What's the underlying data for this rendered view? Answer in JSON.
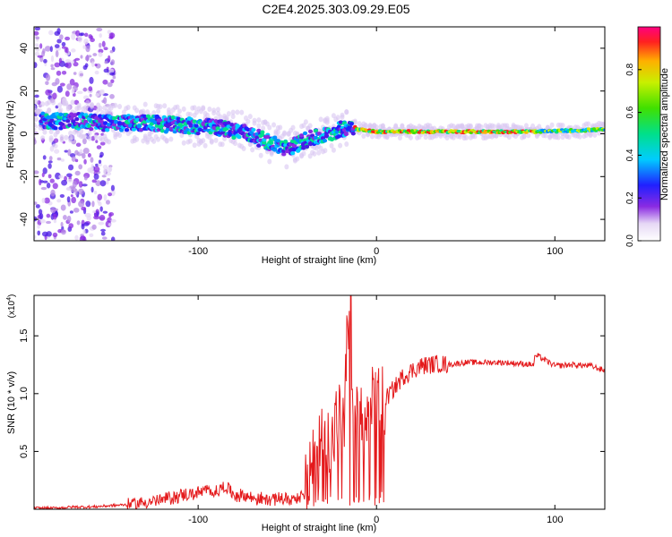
{
  "title": "C2E4.2025.303.09.29.E05",
  "chart_data": [
    {
      "type": "heatmap",
      "xlabel": "Height of straight line (km)",
      "ylabel": "Frequency (Hz)",
      "xlim": [
        -192,
        128
      ],
      "ylim": [
        -50,
        50
      ],
      "x_ticks": [
        -100,
        0,
        100
      ],
      "y_ticks": [
        -40,
        -20,
        0,
        20,
        40
      ],
      "colorbar": {
        "label": "Normalized spectral amplitude",
        "range": [
          0,
          1
        ],
        "ticks": [
          0.0,
          0.2,
          0.4,
          0.6,
          0.8
        ]
      },
      "ridge": {
        "x": [
          -192,
          -170,
          -150,
          -130,
          -110,
          -90,
          -75,
          -60,
          -50,
          -40,
          -30,
          -20,
          -14,
          -10,
          0,
          20,
          50,
          90,
          128
        ],
        "y": [
          6,
          6,
          5,
          5,
          4,
          3,
          1,
          -4,
          -7,
          -3,
          -1,
          2,
          4,
          2,
          1,
          1,
          1,
          1,
          2
        ]
      }
    },
    {
      "type": "line",
      "xlabel": "Height of straight line (km)",
      "ylabel": "SNR (10 * v/v)",
      "y_multiplier": "(x10",
      "y_multiplier_exp": "4",
      "xlim": [
        -192,
        128
      ],
      "ylim": [
        0,
        1.85
      ],
      "x_ticks": [
        -100,
        0,
        100
      ],
      "y_ticks": [
        0.5,
        1.0,
        1.5
      ],
      "series": [
        {
          "color": "#e41a1c",
          "x": [
            -192,
            -180,
            -170,
            -160,
            -150,
            -140,
            -130,
            -120,
            -110,
            -100,
            -95,
            -90,
            -85,
            -80,
            -75,
            -70,
            -65,
            -60,
            -55,
            -50,
            -45,
            -40,
            -37,
            -34,
            -31,
            -28,
            -25,
            -22,
            -20,
            -18,
            -16,
            -14,
            -12,
            -10,
            -8,
            -6,
            -4,
            -2,
            0,
            5,
            10,
            15,
            20,
            25,
            30,
            35,
            40,
            45,
            50,
            60,
            70,
            80,
            88,
            90,
            100,
            110,
            120,
            128
          ],
          "y": [
            0.01,
            0.01,
            0.02,
            0.02,
            0.03,
            0.04,
            0.06,
            0.08,
            0.12,
            0.14,
            0.16,
            0.15,
            0.2,
            0.13,
            0.12,
            0.1,
            0.09,
            0.08,
            0.1,
            0.08,
            0.1,
            0.12,
            0.3,
            0.45,
            0.6,
            0.7,
            0.55,
            0.8,
            0.75,
            0.65,
            1.85,
            0.7,
            0.75,
            0.7,
            0.8,
            0.75,
            0.85,
            0.9,
            0.92,
            0.95,
            1.05,
            1.15,
            1.2,
            1.24,
            1.25,
            1.26,
            1.25,
            1.26,
            1.27,
            1.27,
            1.27,
            1.26,
            1.25,
            1.33,
            1.24,
            1.25,
            1.24,
            1.2
          ]
        }
      ]
    }
  ]
}
